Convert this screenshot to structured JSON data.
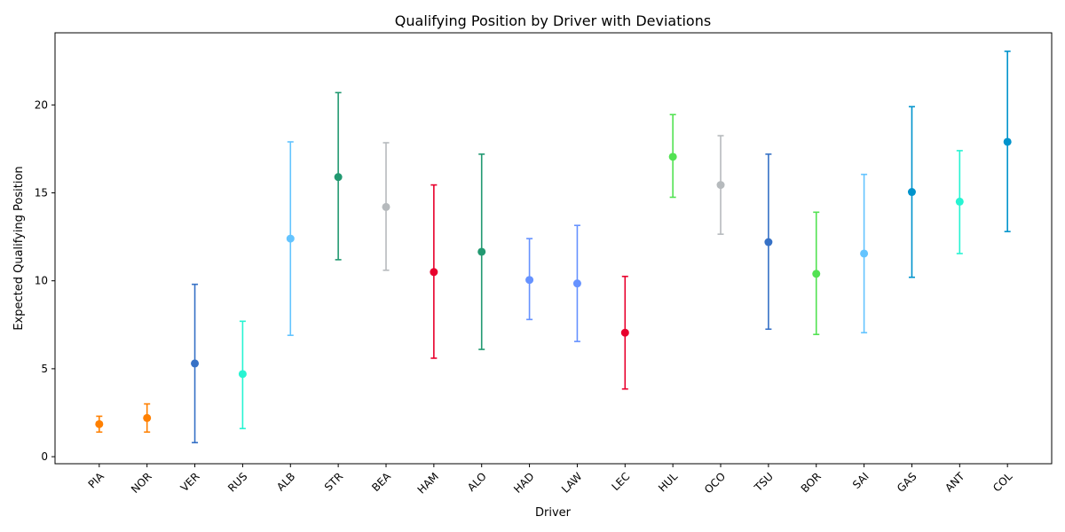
{
  "chart_data": {
    "type": "scatter",
    "title": "Qualifying Position by Driver with Deviations",
    "xlabel": "Driver",
    "ylabel": "Expected Qualifying Position",
    "ylim": [
      -0.4,
      24.1
    ],
    "yticks": [
      0,
      5,
      10,
      15,
      20
    ],
    "grid": false,
    "legend": "none",
    "points": [
      {
        "driver": "PIA",
        "value": 1.85,
        "low": 1.4,
        "high": 2.3,
        "color": "#ff8000"
      },
      {
        "driver": "NOR",
        "value": 2.2,
        "low": 1.4,
        "high": 3.0,
        "color": "#ff8000"
      },
      {
        "driver": "VER",
        "value": 5.3,
        "low": 0.8,
        "high": 9.8,
        "color": "#3671c6"
      },
      {
        "driver": "RUS",
        "value": 4.7,
        "low": 1.6,
        "high": 7.7,
        "color": "#27f4d2"
      },
      {
        "driver": "ALB",
        "value": 12.4,
        "low": 6.9,
        "high": 17.9,
        "color": "#64c4ff"
      },
      {
        "driver": "STR",
        "value": 15.9,
        "low": 11.2,
        "high": 20.7,
        "color": "#229971"
      },
      {
        "driver": "BEA",
        "value": 14.2,
        "low": 10.6,
        "high": 17.85,
        "color": "#b6babd"
      },
      {
        "driver": "HAM",
        "value": 10.5,
        "low": 5.6,
        "high": 15.45,
        "color": "#e8002d"
      },
      {
        "driver": "ALO",
        "value": 11.65,
        "low": 6.1,
        "high": 17.2,
        "color": "#229971"
      },
      {
        "driver": "HAD",
        "value": 10.05,
        "low": 7.8,
        "high": 12.4,
        "color": "#6692ff"
      },
      {
        "driver": "LAW",
        "value": 9.85,
        "low": 6.55,
        "high": 13.15,
        "color": "#6692ff"
      },
      {
        "driver": "LEC",
        "value": 7.05,
        "low": 3.85,
        "high": 10.25,
        "color": "#e8002d"
      },
      {
        "driver": "HUL",
        "value": 17.05,
        "low": 14.75,
        "high": 19.45,
        "color": "#52e252"
      },
      {
        "driver": "OCO",
        "value": 15.45,
        "low": 12.65,
        "high": 18.25,
        "color": "#b6babd"
      },
      {
        "driver": "TSU",
        "value": 12.2,
        "low": 7.25,
        "high": 17.2,
        "color": "#3671c6"
      },
      {
        "driver": "BOR",
        "value": 10.4,
        "low": 6.95,
        "high": 13.9,
        "color": "#52e252"
      },
      {
        "driver": "SAI",
        "value": 11.55,
        "low": 7.05,
        "high": 16.05,
        "color": "#64c4ff"
      },
      {
        "driver": "GAS",
        "value": 15.05,
        "low": 10.2,
        "high": 19.9,
        "color": "#0093cc"
      },
      {
        "driver": "ANT",
        "value": 14.5,
        "low": 11.55,
        "high": 17.4,
        "color": "#27f4d2"
      },
      {
        "driver": "COL",
        "value": 17.9,
        "low": 12.8,
        "high": 23.05,
        "color": "#0093cc"
      }
    ]
  }
}
